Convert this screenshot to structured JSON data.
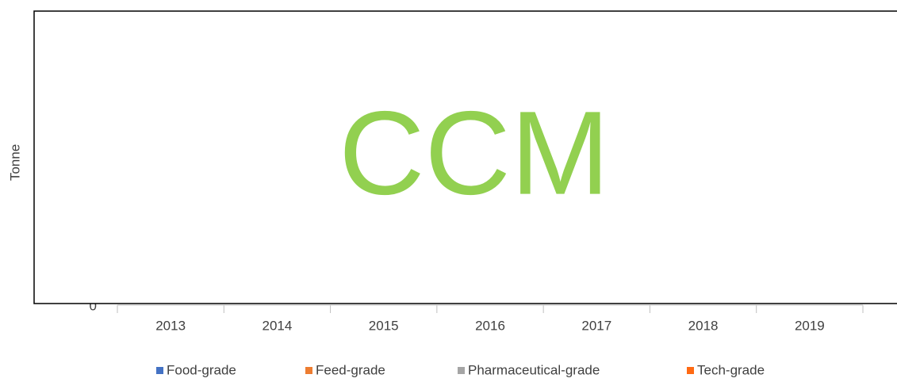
{
  "chart_data": {
    "type": "bar",
    "y_label": "Tonne",
    "categories": [
      "2013",
      "2014",
      "2015",
      "2016",
      "2017",
      "2018",
      "2019"
    ],
    "series": [
      {
        "name": "Food-grade",
        "color": "#4472c4"
      },
      {
        "name": "Feed-grade",
        "color": "#ed7d31"
      },
      {
        "name": "Pharmaceutical-grade",
        "color": "#a5a5a5"
      },
      {
        "name": "Tech-grade",
        "color": "#ff6a13"
      }
    ],
    "yticks": [
      0
    ],
    "watermark": "CCM"
  }
}
